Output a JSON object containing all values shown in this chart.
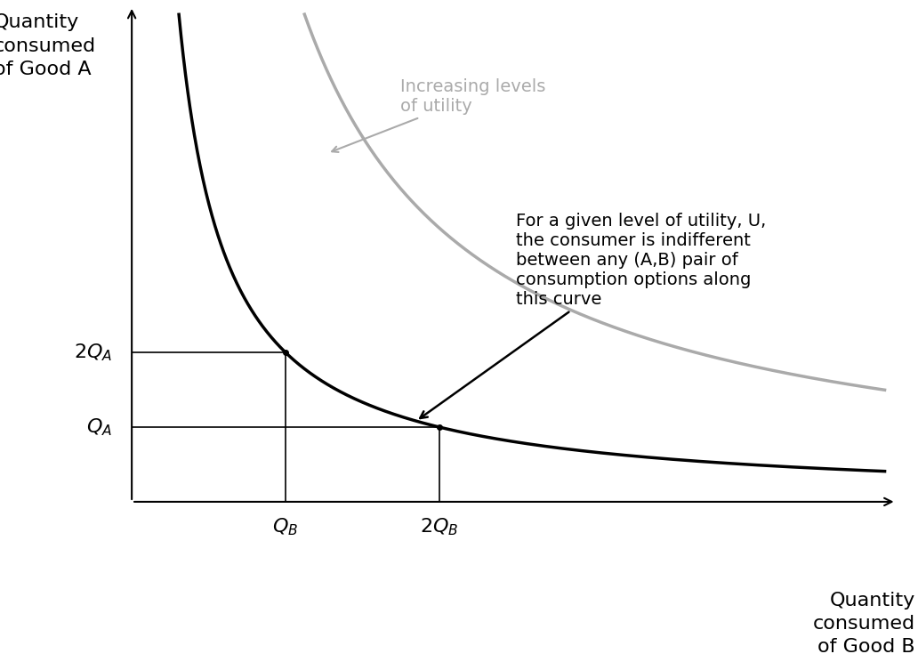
{
  "background_color": "#ffffff",
  "curve1_color": "#000000",
  "curve2_color": "#aaaaaa",
  "k1": 12.0,
  "k2": 22.0,
  "xmin": 0.0,
  "xmax": 10.0,
  "ymin": 0.0,
  "ymax": 10.0,
  "QB": 2.0,
  "QA_2x": 3.0,
  "QA": 1.5,
  "QB_2x": 4.0,
  "ylabel_text": "Quantity\nconsumed\nof Good A",
  "xlabel_text": "Quantity\nconsumed\nof Good B",
  "label_fontsize": 16,
  "tick_fontsize": 16,
  "annotation_text": "For a given level of utility, U,\nthe consumer is indifferent\nbetween any (A,B) pair of\nconsumption options along\nthis curve",
  "annotation_fontsize": 14,
  "increasing_text": "Increasing levels\nof utility",
  "increasing_fontsize": 14,
  "increasing_color": "#aaaaaa",
  "line_color": "#000000",
  "ref_lw": 1.2,
  "curve_lw": 2.5
}
